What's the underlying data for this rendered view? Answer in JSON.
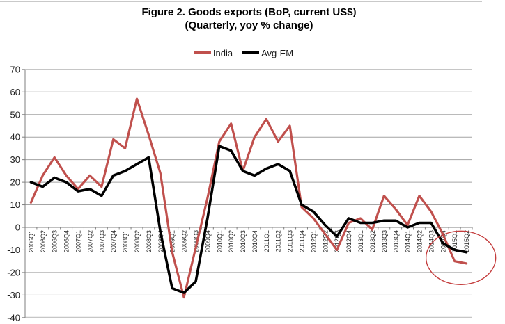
{
  "figure": {
    "title_line1": "Figure 2. Goods exports (BoP, current US$)",
    "title_line2": "(Quarterly, yoy % change)"
  },
  "legend": {
    "items": [
      {
        "label": "India",
        "color": "#C0504D"
      },
      {
        "label": "Avg-EM",
        "color": "#000000"
      }
    ]
  },
  "chart_data": {
    "type": "line",
    "title": "Figure 2. Goods exports (BoP, current US$)",
    "subtitle": "(Quarterly, yoy % change)",
    "categories": [
      "2006Q1",
      "2006Q2",
      "2006Q3",
      "2006Q4",
      "2007Q1",
      "2007Q2",
      "2007Q3",
      "2007Q4",
      "2008Q1",
      "2008Q2",
      "2008Q3",
      "2008Q4",
      "2009Q1",
      "2009Q2",
      "2009Q3",
      "2009Q4",
      "2010Q1",
      "2010Q2",
      "2010Q3",
      "2010Q4",
      "2011Q1",
      "2011Q2",
      "2011Q3",
      "2011Q4",
      "2012Q1",
      "2012Q2",
      "2012Q3",
      "2012Q4",
      "2013Q1",
      "2013Q2",
      "2013Q3",
      "2013Q4",
      "2014Q1",
      "2014Q2",
      "2014Q3",
      "2014Q4",
      "2015Q1",
      "2015Q2"
    ],
    "series": [
      {
        "name": "India",
        "color": "#C0504D",
        "stroke_width": 3.2,
        "values": [
          11,
          23,
          31,
          23,
          17,
          23,
          18,
          39,
          35,
          57,
          41,
          24,
          -11,
          -31,
          -9,
          13,
          38,
          46,
          25,
          40,
          48,
          38,
          45,
          9,
          4,
          -3,
          -10,
          2,
          4,
          -1,
          14,
          8,
          1,
          14,
          7,
          -3,
          -15,
          -16
        ]
      },
      {
        "name": "Avg-EM",
        "color": "#000000",
        "stroke_width": 3.6,
        "values": [
          20,
          18,
          22,
          20,
          16,
          17,
          14,
          23,
          25,
          28,
          31,
          -2,
          -27,
          -29,
          -24,
          4,
          36,
          34,
          25,
          23,
          26,
          28,
          25,
          10,
          7,
          1,
          -4,
          4,
          2,
          2,
          3,
          3,
          0,
          2,
          2,
          -7,
          -10,
          -11
        ]
      }
    ],
    "ylim": [
      -40,
      70
    ],
    "ytick_step": 10,
    "grid": true,
    "legend_position": "top",
    "annotation": {
      "type": "ellipse-highlight",
      "color": "#C43D3D",
      "around_categories": [
        "2014Q4",
        "2015Q1",
        "2015Q2"
      ],
      "note": "circles the late-2014/2015 decline of both lines"
    }
  },
  "colors": {
    "gridline": "#A3A3A3",
    "axis": "#7F7F7F",
    "plot_bottom_line": "#C6C6C6",
    "tick_label": "#1F1F1F",
    "chart_border": "#C9C9C9"
  }
}
